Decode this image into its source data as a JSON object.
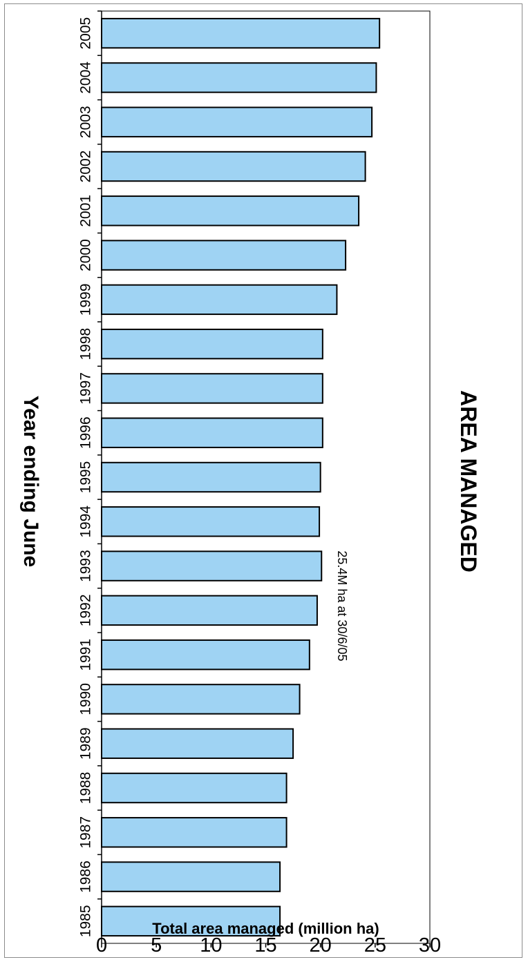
{
  "chart_data": {
    "type": "bar",
    "orientation": "horizontal",
    "title": "AREA MANAGED",
    "xlabel": "Year ending June",
    "ylabel": "Total area managed (million ha)",
    "categories": [
      "1985",
      "1986",
      "1987",
      "1988",
      "1989",
      "1990",
      "1991",
      "1992",
      "1993",
      "1994",
      "1995",
      "1996",
      "1997",
      "1998",
      "1999",
      "2000",
      "2001",
      "2002",
      "2003",
      "2004",
      "2005"
    ],
    "values": [
      16.3,
      16.3,
      16.9,
      16.9,
      17.5,
      18.1,
      19.0,
      19.7,
      20.1,
      19.9,
      20.0,
      20.2,
      20.2,
      20.2,
      21.5,
      22.3,
      23.5,
      24.1,
      24.7,
      25.1,
      25.4
    ],
    "ylim": [
      0,
      30
    ],
    "yticks": [
      "0",
      "5",
      "10",
      "15",
      "20",
      "25",
      "30"
    ],
    "annotation": "25.4M ha at 30/6/05",
    "grid": false,
    "bar_color": "#9fd3f3"
  }
}
